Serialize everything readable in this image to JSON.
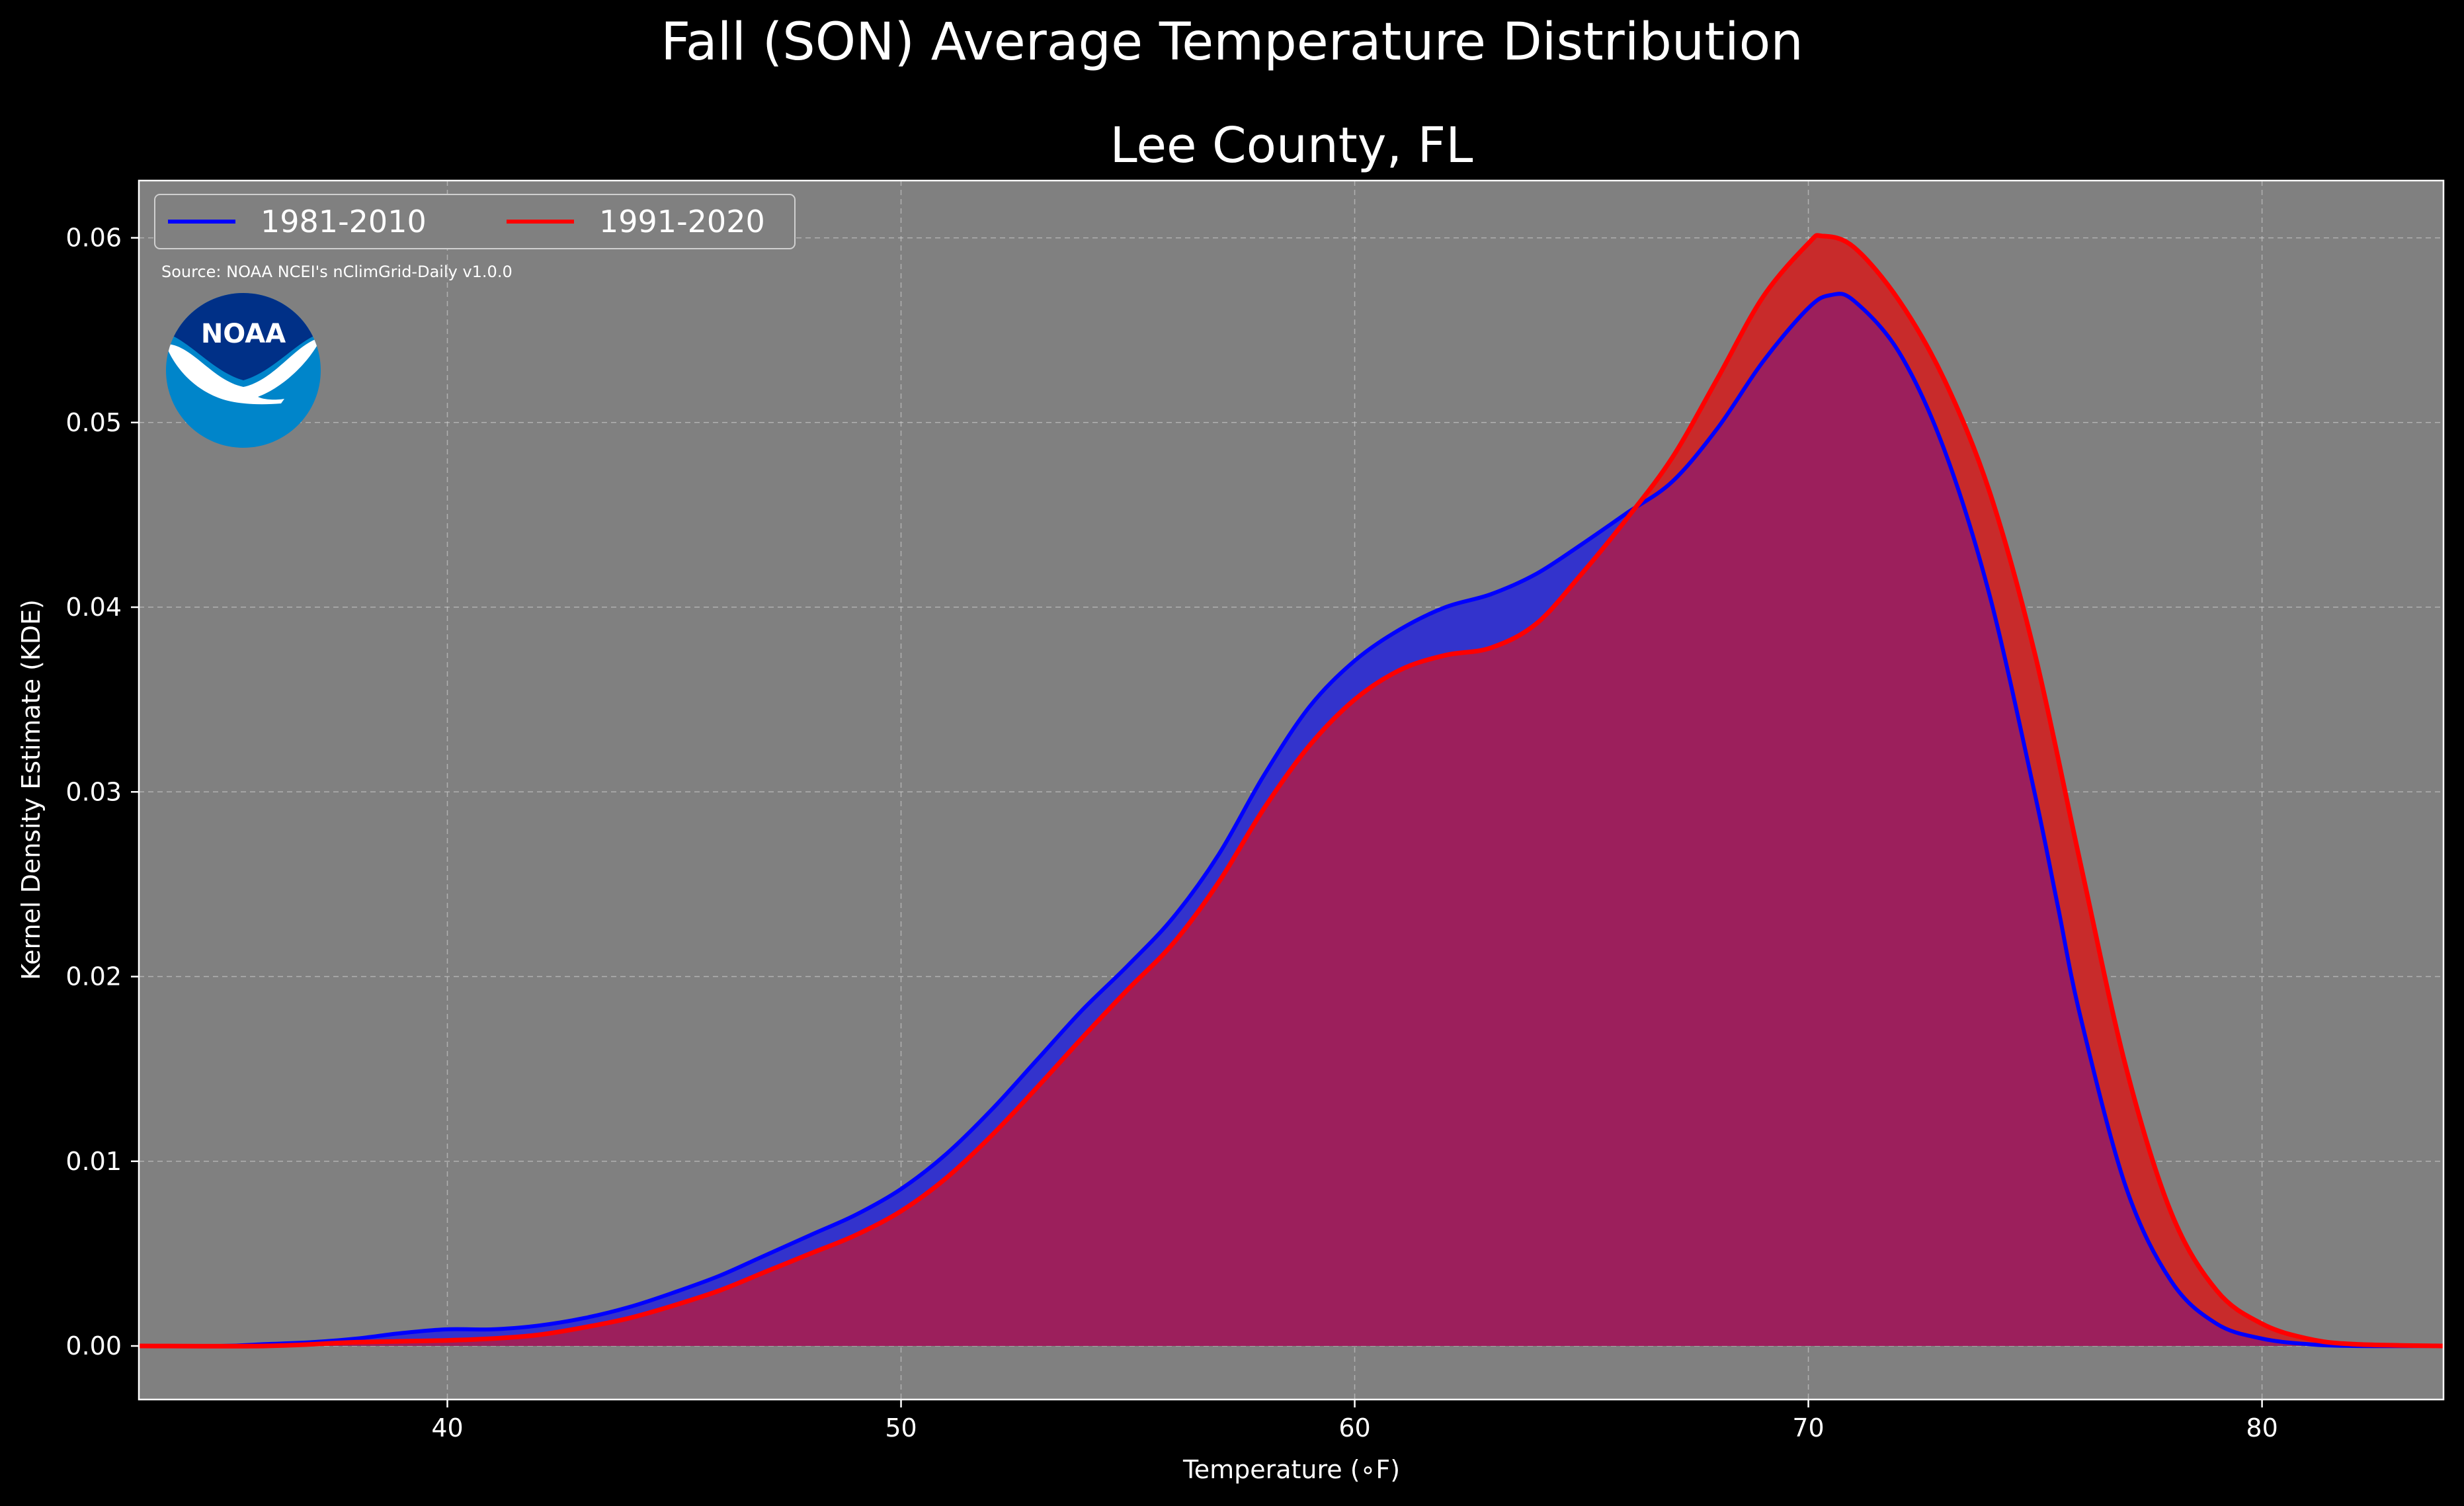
{
  "chart_data": {
    "type": "area",
    "suptitle": "Fall (SON) Average Temperature Distribution",
    "title": "Lee County, FL",
    "xlabel": "Temperature ($^\\circ$F)",
    "xlabel_display": "Temperature (∘F)",
    "ylabel": "Kernel Density Estimate (KDE)",
    "xlim": [
      33.2,
      84.0
    ],
    "ylim": [
      -0.0029,
      0.0631
    ],
    "xticks": [
      40,
      50,
      60,
      70,
      80
    ],
    "xtick_labels": [
      "40",
      "50",
      "60",
      "70",
      "80"
    ],
    "yticks": [
      0.0,
      0.01,
      0.02,
      0.03,
      0.04,
      0.05,
      0.06
    ],
    "ytick_labels": [
      "0.00",
      "0.01",
      "0.02",
      "0.03",
      "0.04",
      "0.05",
      "0.06"
    ],
    "grid": true,
    "legend_position": "upper-left",
    "source": "Source: NOAA NCEI's nClimGrid-Daily v1.0.0",
    "series": [
      {
        "name": "1981-2010",
        "color": "#0000ff",
        "fill": "#3333cc",
        "points": [
          [
            33.2,
            0.0
          ],
          [
            35,
            0.0
          ],
          [
            36,
            0.0001
          ],
          [
            37,
            0.0002
          ],
          [
            38,
            0.0004
          ],
          [
            39,
            0.0007
          ],
          [
            40,
            0.0009
          ],
          [
            41,
            0.0009
          ],
          [
            42,
            0.0011
          ],
          [
            43,
            0.0015
          ],
          [
            44,
            0.0021
          ],
          [
            45,
            0.0029
          ],
          [
            46,
            0.0038
          ],
          [
            47,
            0.0049
          ],
          [
            48,
            0.006
          ],
          [
            49,
            0.0071
          ],
          [
            50,
            0.0085
          ],
          [
            51,
            0.0104
          ],
          [
            52,
            0.0128
          ],
          [
            53,
            0.0155
          ],
          [
            54,
            0.0182
          ],
          [
            55,
            0.0206
          ],
          [
            56,
            0.0232
          ],
          [
            57,
            0.0266
          ],
          [
            58,
            0.0309
          ],
          [
            59,
            0.0346
          ],
          [
            60,
            0.0371
          ],
          [
            61,
            0.0388
          ],
          [
            62,
            0.04
          ],
          [
            63,
            0.0407
          ],
          [
            64,
            0.0418
          ],
          [
            65,
            0.0434
          ],
          [
            66,
            0.0451
          ],
          [
            67,
            0.0468
          ],
          [
            68,
            0.0497
          ],
          [
            69,
            0.0533
          ],
          [
            70,
            0.0562
          ],
          [
            70.5,
            0.0569
          ],
          [
            71,
            0.0566
          ],
          [
            72,
            0.0538
          ],
          [
            73,
            0.0485
          ],
          [
            74,
            0.0406
          ],
          [
            75,
            0.0298
          ],
          [
            75.5,
            0.0238
          ],
          [
            76,
            0.0178
          ],
          [
            77,
            0.0086
          ],
          [
            78,
            0.0035
          ],
          [
            79,
            0.0012
          ],
          [
            80,
            0.0004
          ],
          [
            81,
            0.0001
          ],
          [
            82,
            0.0
          ],
          [
            84,
            0.0
          ]
        ]
      },
      {
        "name": "1991-2020",
        "color": "#ff0000",
        "fill": "#c82b2b",
        "points": [
          [
            33.2,
            0.0
          ],
          [
            36,
            0.0
          ],
          [
            38,
            0.0002
          ],
          [
            40,
            0.0003
          ],
          [
            41,
            0.0004
          ],
          [
            42,
            0.0006
          ],
          [
            43,
            0.001
          ],
          [
            44,
            0.0015
          ],
          [
            45,
            0.0022
          ],
          [
            46,
            0.003
          ],
          [
            47,
            0.004
          ],
          [
            48,
            0.005
          ],
          [
            49,
            0.006
          ],
          [
            50,
            0.0073
          ],
          [
            51,
            0.0091
          ],
          [
            52,
            0.0114
          ],
          [
            53,
            0.014
          ],
          [
            54,
            0.0167
          ],
          [
            55,
            0.0193
          ],
          [
            56,
            0.0218
          ],
          [
            57,
            0.0251
          ],
          [
            58,
            0.0291
          ],
          [
            59,
            0.0325
          ],
          [
            60,
            0.035
          ],
          [
            61,
            0.0366
          ],
          [
            62,
            0.0374
          ],
          [
            63,
            0.0378
          ],
          [
            64,
            0.0391
          ],
          [
            65,
            0.0418
          ],
          [
            66,
            0.0448
          ],
          [
            67,
            0.0481
          ],
          [
            68,
            0.0524
          ],
          [
            69,
            0.0568
          ],
          [
            70,
            0.0597
          ],
          [
            70.3,
            0.0601
          ],
          [
            71,
            0.0595
          ],
          [
            72,
            0.0566
          ],
          [
            73,
            0.0523
          ],
          [
            74,
            0.0462
          ],
          [
            75,
            0.0374
          ],
          [
            76,
            0.0261
          ],
          [
            77,
            0.0151
          ],
          [
            78,
            0.0072
          ],
          [
            79,
            0.003
          ],
          [
            80,
            0.0012
          ],
          [
            81,
            0.0004
          ],
          [
            82,
            0.0001
          ],
          [
            84,
            0.0
          ]
        ]
      }
    ]
  },
  "logo": {
    "text": "NOAA",
    "outer_color": "#0085ca",
    "inner_color": "#003087"
  },
  "colors": {
    "background": "#000000",
    "plot_background": "#808080",
    "overlap": "#9c1f5c"
  }
}
